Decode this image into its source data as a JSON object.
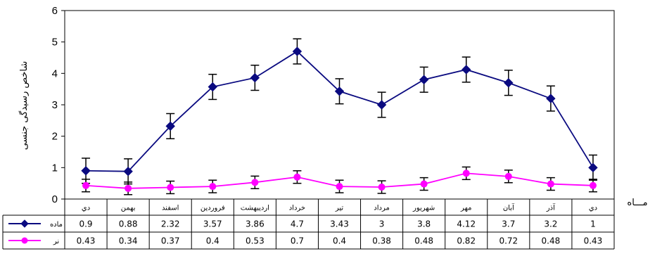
{
  "chart_data": {
    "type": "line",
    "title": "",
    "ylabel": "شاخص رسیدگی جنسی",
    "xlabel": "مـــاه",
    "ylim": [
      0,
      6
    ],
    "yticks": [
      0,
      1,
      2,
      3,
      4,
      5,
      6
    ],
    "grid": false,
    "legend": "data-table-left",
    "categories": [
      "دي",
      "آذر",
      "آبان",
      "مهر",
      "شهريور",
      "مرداد",
      "تير",
      "خرداد",
      "ارديبهشت",
      "فروردين",
      "اسفند",
      "بهمن",
      "دي"
    ],
    "series": [
      {
        "name": "ماده",
        "color": "#0a0a80",
        "marker": "diamond",
        "values": [
          1,
          3.2,
          3.7,
          4.12,
          3.8,
          3,
          3.43,
          4.7,
          3.86,
          3.57,
          2.32,
          0.88,
          0.9
        ],
        "labels": [
          "1",
          "3.2",
          "3.7",
          "4.12",
          "3.8",
          "3",
          "3.43",
          "4.7",
          "3.86",
          "3.57",
          "2.32",
          "0.88",
          "0.9"
        ],
        "error": 0.4
      },
      {
        "name": "نر",
        "color": "#ff00ff",
        "marker": "circle",
        "values": [
          0.43,
          0.48,
          0.72,
          0.82,
          0.48,
          0.38,
          0.4,
          0.7,
          0.53,
          0.4,
          0.37,
          0.34,
          0.43
        ],
        "labels": [
          "0.43",
          "0.48",
          "0.72",
          "0.82",
          "0.48",
          "0.38",
          "0.4",
          "0.7",
          "0.53",
          "0.4",
          "0.37",
          "0.34",
          "0.43"
        ],
        "error": 0.2
      }
    ]
  }
}
